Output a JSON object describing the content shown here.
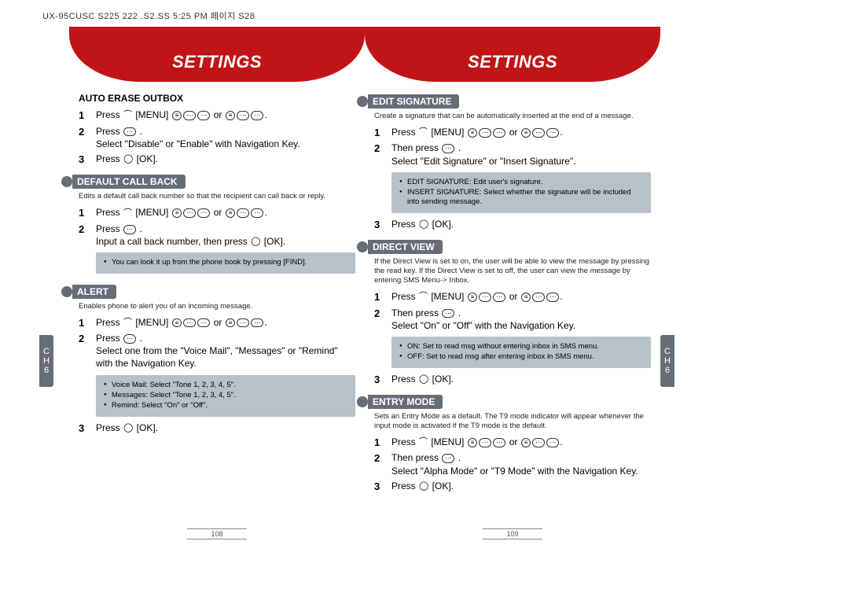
{
  "header_text": "UX-95CUSC S225   222 .S2.SS 5:25 PM  페이지 S28",
  "left": {
    "tab_title": "SETTINGS",
    "sections": [
      {
        "title": "AUTO ERASE OUTBOX",
        "type": "plain-bold",
        "steps": [
          {
            "n": "1",
            "body_prefix": "Press ",
            "body_mid": "[MENU]",
            "body_suffix": "  or  ."
          },
          {
            "n": "2",
            "body": "Press  .\nSelect \"Disable\" or \"Enable\" with Navigation Key."
          },
          {
            "n": "3",
            "body": "Press  [OK]."
          }
        ]
      },
      {
        "title": "DEFAULT CALL BACK",
        "type": "pill",
        "desc": "Edits a default call back number so that the recipient can call back or reply.",
        "steps": [
          {
            "n": "1",
            "body_prefix": "Press ",
            "body_mid": "[MENU]",
            "body_suffix": "  or  ."
          },
          {
            "n": "2",
            "body": "Press  .\nInput a call back number, then press  [OK]."
          }
        ],
        "note": [
          "You can look it up from the phone book by pressing  [FIND]."
        ]
      },
      {
        "title": "ALERT",
        "type": "pill",
        "desc": "Enables phone to alert you of an incoming message.",
        "steps": [
          {
            "n": "1",
            "body_prefix": "Press ",
            "body_mid": "[MENU]",
            "body_suffix": "  or  ."
          },
          {
            "n": "2",
            "body": "Press  .\nSelect one from the \"Voice Mail\", \"Messages\" or \"Remind\" with the Navigation Key."
          }
        ],
        "note": [
          "Voice Mail: Select \"Tone 1, 2, 3, 4, 5\".",
          "Messages: Select \"Tone 1, 2, 3, 4, 5\".",
          "Remind: Select \"On\" or \"Off\"."
        ],
        "steps_after": [
          {
            "n": "3",
            "body": "Press  [OK]."
          }
        ]
      }
    ],
    "page_num": "108"
  },
  "right": {
    "tab_title": "SETTINGS",
    "sections": [
      {
        "title": "EDIT SIGNATURE",
        "type": "pill",
        "desc": "Create a signature that can be automatically inserted at the end of a message.",
        "steps": [
          {
            "n": "1",
            "body_prefix": "Press ",
            "body_mid": "[MENU]",
            "body_suffix": "  or  ."
          },
          {
            "n": "2",
            "body": "Then press  .\nSelect \"Edit Signature\" or \"Insert Signature\"."
          }
        ],
        "note": [
          "EDIT SIGNATURE: Edit user's signature.",
          "INSERT SIGNATURE: Select whether the signature will be included into sending message."
        ],
        "steps_after": [
          {
            "n": "3",
            "body": "Press  [OK]."
          }
        ]
      },
      {
        "title": "DIRECT VIEW",
        "type": "pill",
        "desc": "If the Direct View is set to on, the user will be able to view the message by pressing the read key. If the Direct View is set to off, the user can view the message by entering SMS Menu-> Inbox.",
        "steps": [
          {
            "n": "1",
            "body_prefix": "Press ",
            "body_mid": "[MENU]",
            "body_suffix": "  or  ."
          },
          {
            "n": "2",
            "body": "Then press  .\nSelect \"On\" or \"Off\" with the Navigation Key."
          }
        ],
        "note": [
          "ON: Set to read msg without entering inbox in SMS menu.",
          "OFF: Set to read msg after entering inbox in SMS menu."
        ],
        "steps_after": [
          {
            "n": "3",
            "body": "Press  [OK]."
          }
        ]
      },
      {
        "title": "ENTRY MODE",
        "type": "pill",
        "desc": "Sets an Entry Mode as a default. The T9 mode indicator will appear whenever the input mode is activated if the T9 mode is the default.",
        "steps": [
          {
            "n": "1",
            "body_prefix": "Press ",
            "body_mid": "[MENU]",
            "body_suffix": "  or  ."
          },
          {
            "n": "2",
            "body": "Then press  .\nSelect  \"Alpha Mode\" or \"T9 Mode\" with the Navigation Key."
          },
          {
            "n": "3",
            "body": "Press  [OK]."
          }
        ]
      }
    ],
    "page_num": "109"
  },
  "side_tab": {
    "line1": "C",
    "line2": "H",
    "line3": "6"
  }
}
